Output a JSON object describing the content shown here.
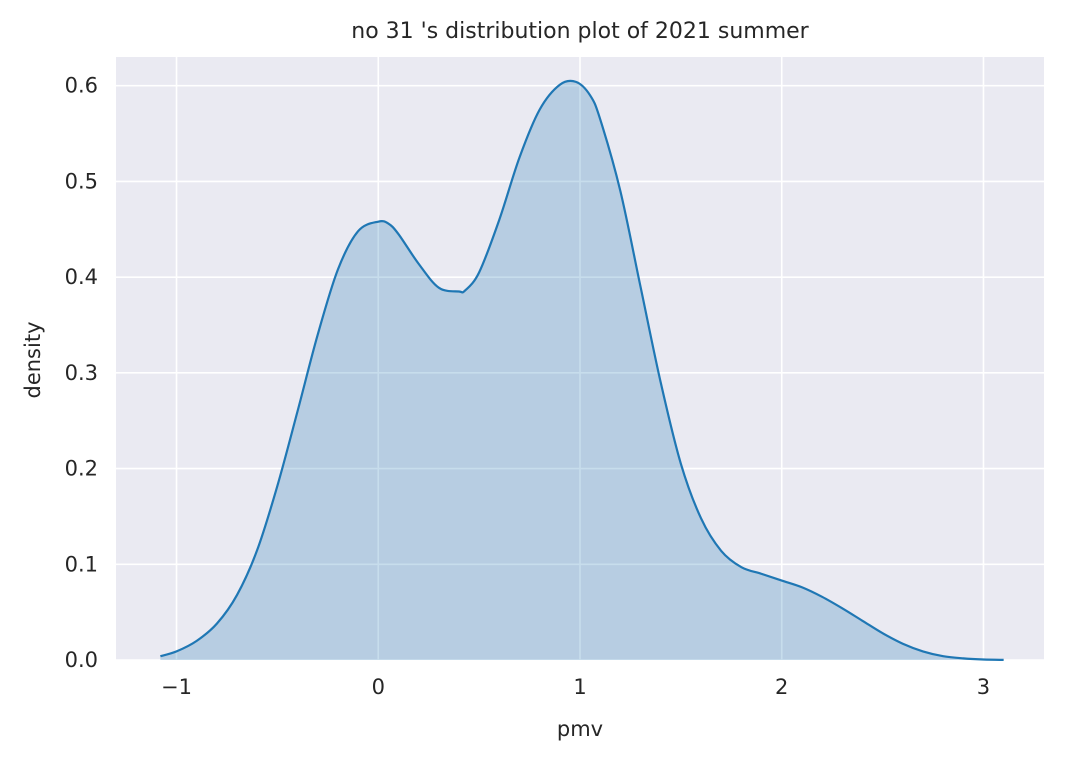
{
  "chart_data": {
    "type": "area",
    "title": "no 31 's distribution plot of 2021 summer",
    "xlabel": "pmv",
    "ylabel": "density",
    "xlim": [
      -1.3,
      3.3
    ],
    "ylim": [
      0,
      0.63
    ],
    "xticks": [
      -1,
      0,
      1,
      2,
      3
    ],
    "xtick_labels": [
      "−1",
      "0",
      "1",
      "2",
      "3"
    ],
    "yticks": [
      0,
      0.1,
      0.2,
      0.3,
      0.4,
      0.5,
      0.6
    ],
    "ytick_labels": [
      "0.0",
      "0.1",
      "0.2",
      "0.3",
      "0.4",
      "0.5",
      "0.6"
    ],
    "grid": true,
    "colors": {
      "background": "#eaeaf2",
      "grid": "#ffffff",
      "line": "#1f77b4",
      "fill": "#1f77b4",
      "fill_opacity": 0.25
    },
    "series": [
      {
        "x": [
          -1.08,
          -1.0,
          -0.9,
          -0.8,
          -0.7,
          -0.6,
          -0.5,
          -0.4,
          -0.3,
          -0.2,
          -0.1,
          0.0,
          0.05,
          0.1,
          0.2,
          0.3,
          0.4,
          0.43,
          0.5,
          0.6,
          0.7,
          0.8,
          0.9,
          0.98,
          1.05,
          1.1,
          1.2,
          1.3,
          1.4,
          1.5,
          1.6,
          1.7,
          1.8,
          1.9,
          2.0,
          2.1,
          2.2,
          2.3,
          2.4,
          2.5,
          2.6,
          2.7,
          2.8,
          2.9,
          3.0,
          3.1
        ],
        "y": [
          0.004,
          0.009,
          0.02,
          0.038,
          0.068,
          0.115,
          0.182,
          0.26,
          0.34,
          0.408,
          0.448,
          0.458,
          0.456,
          0.445,
          0.414,
          0.389,
          0.385,
          0.386,
          0.405,
          0.46,
          0.525,
          0.575,
          0.601,
          0.604,
          0.59,
          0.565,
          0.49,
          0.39,
          0.29,
          0.205,
          0.148,
          0.114,
          0.097,
          0.09,
          0.083,
          0.076,
          0.066,
          0.054,
          0.041,
          0.028,
          0.017,
          0.009,
          0.004,
          0.0017,
          0.0005,
          0.0001
        ]
      }
    ]
  }
}
